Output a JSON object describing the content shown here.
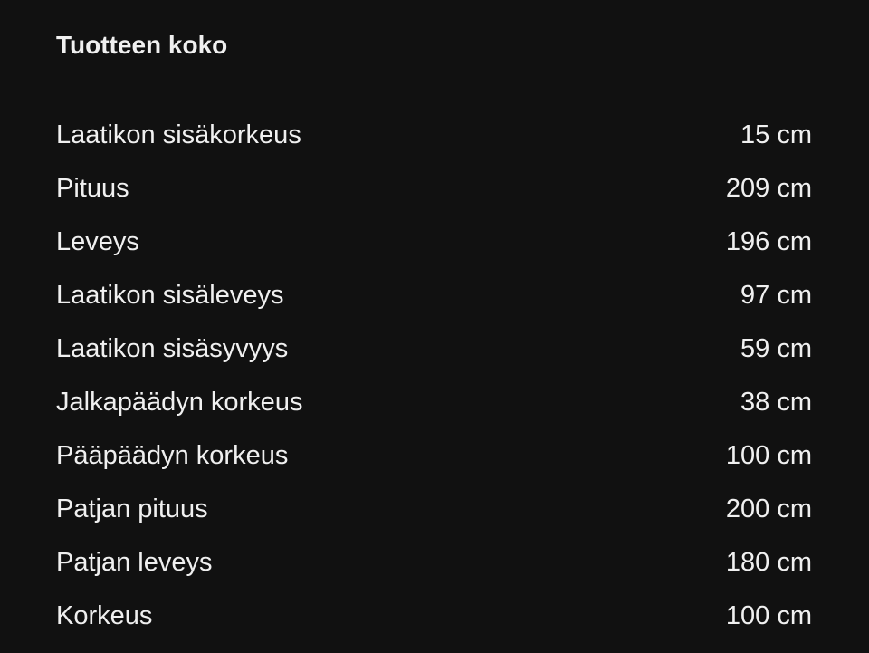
{
  "title": "Tuotteen koko",
  "rows": [
    {
      "label": "Laatikon sisäkorkeus",
      "value": "15 cm"
    },
    {
      "label": "Pituus",
      "value": "209 cm"
    },
    {
      "label": "Leveys",
      "value": "196 cm"
    },
    {
      "label": "Laatikon sisäleveys",
      "value": "97 cm"
    },
    {
      "label": "Laatikon sisäsyvyys",
      "value": "59 cm"
    },
    {
      "label": "Jalkapäädyn korkeus",
      "value": "38 cm"
    },
    {
      "label": "Pääpäädyn korkeus",
      "value": "100 cm"
    },
    {
      "label": "Patjan pituus",
      "value": "200 cm"
    },
    {
      "label": "Patjan leveys",
      "value": "180 cm"
    },
    {
      "label": "Korkeus",
      "value": "100 cm"
    }
  ]
}
